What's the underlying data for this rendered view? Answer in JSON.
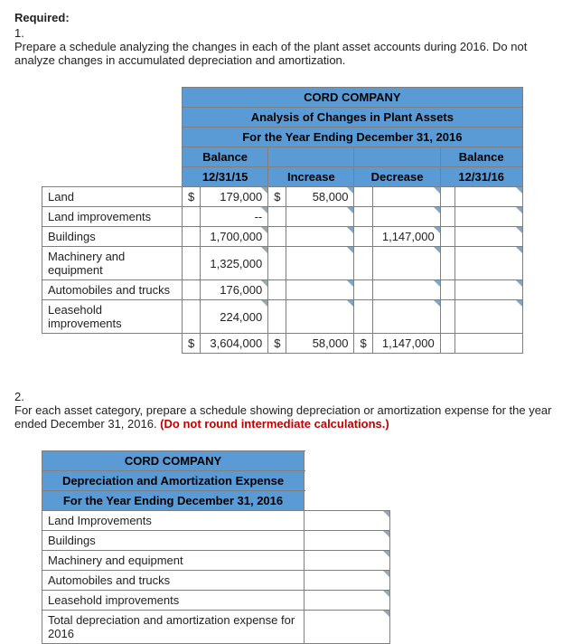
{
  "required_label": "Required:",
  "q1": {
    "num": "1.",
    "text": "Prepare a schedule analyzing the changes in each of the plant asset accounts during 2016. Do not analyze changes in accumulated depreciation and amortization."
  },
  "q2": {
    "num": "2.",
    "text_a": "For each asset category, prepare a schedule showing depreciation or amortization expense for the year ended December 31, 2016. ",
    "text_b": "(Do not round intermediate calculations.)"
  },
  "table1": {
    "title1": "CORD COMPANY",
    "title2": "Analysis of Changes in Plant Assets",
    "title3": "For the Year Ending December 31, 2016",
    "col_balance": "Balance",
    "col_balance_date1": "12/31/15",
    "col_increase": "Increase",
    "col_decrease": "Decrease",
    "col_balance_date2": "12/31/16",
    "rows": [
      {
        "label": "Land",
        "b_cur": "$",
        "b_val": "179,000",
        "i_cur": "$",
        "i_val": "58,000",
        "d_cur": "",
        "d_val": "",
        "e_cur": "",
        "e_val": ""
      },
      {
        "label": "Land improvements",
        "b_cur": "",
        "b_val": "--",
        "i_cur": "",
        "i_val": "",
        "d_cur": "",
        "d_val": "",
        "e_cur": "",
        "e_val": ""
      },
      {
        "label": "Buildings",
        "b_cur": "",
        "b_val": "1,700,000",
        "i_cur": "",
        "i_val": "",
        "d_cur": "",
        "d_val": "1,147,000",
        "e_cur": "",
        "e_val": ""
      },
      {
        "label": "Machinery and equipment",
        "b_cur": "",
        "b_val": "1,325,000",
        "i_cur": "",
        "i_val": "",
        "d_cur": "",
        "d_val": "",
        "e_cur": "",
        "e_val": ""
      },
      {
        "label": "Automobiles and trucks",
        "b_cur": "",
        "b_val": "176,000",
        "i_cur": "",
        "i_val": "",
        "d_cur": "",
        "d_val": "",
        "e_cur": "",
        "e_val": ""
      },
      {
        "label": "Leasehold improvements",
        "b_cur": "",
        "b_val": "224,000",
        "i_cur": "",
        "i_val": "",
        "d_cur": "",
        "d_val": "",
        "e_cur": "",
        "e_val": ""
      }
    ],
    "total": {
      "b_cur": "$",
      "b_val": "3,604,000",
      "i_cur": "$",
      "i_val": "58,000",
      "d_cur": "$",
      "d_val": "1,147,000",
      "e_cur": "",
      "e_val": ""
    }
  },
  "table2": {
    "title1": "CORD COMPANY",
    "title2": "Depreciation and Amortization Expense",
    "title3": "For the Year Ending December 31, 2016",
    "rows": [
      "Land Improvements",
      "Buildings",
      "Machinery and equipment",
      "Automobiles and trucks",
      "Leasehold improvements",
      "Total depreciation and amortization expense for 2016"
    ]
  }
}
